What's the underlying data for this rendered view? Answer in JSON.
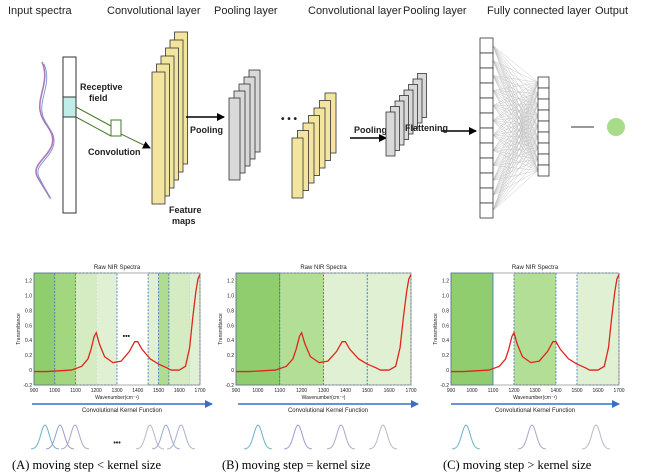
{
  "top_labels": {
    "input_spectra": "Input spectra",
    "conv_layer_1": "Convolutional layer",
    "pool_layer_1": "Pooling layer",
    "conv_layer_2": "Convolutional layer",
    "pool_layer_2": "Pooling layer",
    "fc_layer": "Fully connected layer",
    "output": "Output"
  },
  "annotations": {
    "receptive_field_1": "Receptive",
    "receptive_field_2": "field",
    "convolution": "Convolution",
    "pooling_1": "Pooling",
    "pooling_2": "Pooling",
    "flattening": "Flattening",
    "feature_maps_1": "Feature",
    "feature_maps_2": "maps",
    "ellipsis": "• • •"
  },
  "colors": {
    "feature_map": "#f3e5a0",
    "pool_map": "#d9d9d9",
    "receptive": "#bfeee8",
    "green_dark": "#7cc456",
    "green_mid": "#a6d884",
    "green_light": "#daeecb",
    "spectrum": "#e0251b",
    "axis_blue": "#3a6fc4",
    "output_node": "#a6dc8a"
  },
  "panels": [
    {
      "chart_title": "Raw NIR Spectra",
      "ylabel": "Transmittance",
      "xlabel": "Wavenumber(cm⁻¹)",
      "x_ticks": [
        "900",
        "1000",
        "1100",
        "1200",
        "1300",
        "1400",
        "1500",
        "1600",
        "1700"
      ],
      "y_ticks": [
        "1.2",
        "1.0",
        "0.8",
        "0.6",
        "0.4",
        "0.2",
        "0",
        "-0.2"
      ],
      "ellipsis": "•••",
      "kernel_label": "Convolutional Kernel Function",
      "kernel_ellipsis": "•••",
      "caption": "(A) moving step < kernel size"
    },
    {
      "chart_title": "Raw NIR Spectra",
      "ylabel": "Transmittance",
      "xlabel": "Wavenumber(cm⁻¹)",
      "x_ticks": [
        "900",
        "1000",
        "1100",
        "1200",
        "1300",
        "1400",
        "1500",
        "1600",
        "1700"
      ],
      "y_ticks": [
        "1.2",
        "1.0",
        "0.8",
        "0.6",
        "0.4",
        "0.2",
        "0",
        "-0.2"
      ],
      "kernel_label": "Convolutional Kernel Function",
      "caption": "(B) moving step = kernel size"
    },
    {
      "chart_title": "Raw NIR Spectra",
      "ylabel": "Transmittance",
      "xlabel": "Wavenumber(cm⁻¹)",
      "x_ticks": [
        "900",
        "1000",
        "1100",
        "1200",
        "1300",
        "1400",
        "1500",
        "1600",
        "1700"
      ],
      "y_ticks": [
        "1.2",
        "1.0",
        "0.8",
        "0.6",
        "0.4",
        "0.2",
        "0",
        "-0.2"
      ],
      "kernel_label": "Convolutional Kernel Function",
      "caption": "(C) moving step > kernel size"
    }
  ],
  "chart_data": {
    "type": "line",
    "title": "Raw NIR Spectra",
    "xlabel": "Wavenumber(cm⁻¹)",
    "ylabel": "Transmittance",
    "xlim": [
      900,
      1700
    ],
    "ylim": [
      -0.2,
      1.3
    ],
    "series": [
      {
        "name": "spectrum",
        "x": [
          900,
          960,
          1020,
          1080,
          1130,
          1160,
          1175,
          1190,
          1200,
          1215,
          1240,
          1280,
          1320,
          1360,
          1385,
          1400,
          1420,
          1460,
          1500,
          1540,
          1560,
          1600,
          1630,
          1650,
          1665,
          1680,
          1690,
          1700
        ],
        "y": [
          -0.02,
          -0.02,
          -0.01,
          0.0,
          0.05,
          0.15,
          0.28,
          0.45,
          0.5,
          0.35,
          0.18,
          0.1,
          0.12,
          0.25,
          0.38,
          0.38,
          0.28,
          0.15,
          0.08,
          0.03,
          0.0,
          0.0,
          0.05,
          0.3,
          0.7,
          1.05,
          1.22,
          1.28
        ]
      }
    ],
    "windows": {
      "A": [
        [
          900,
          1100
        ],
        [
          1000,
          1200
        ],
        [
          1100,
          1300
        ],
        [
          1450,
          1550
        ],
        [
          1500,
          1650
        ],
        [
          1550,
          1700
        ]
      ],
      "B": [
        [
          900,
          1100
        ],
        [
          1100,
          1300
        ],
        [
          1300,
          1500
        ],
        [
          1500,
          1700
        ]
      ],
      "C": [
        [
          900,
          1100
        ],
        [
          1200,
          1400
        ],
        [
          1500,
          1700
        ]
      ]
    }
  }
}
